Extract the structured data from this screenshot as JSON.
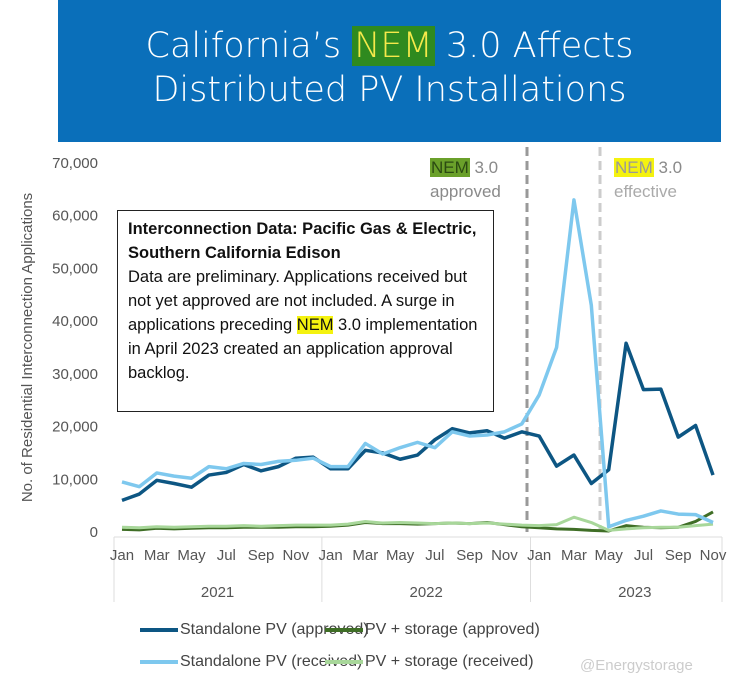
{
  "header": {
    "title_pre": "California’s ",
    "title_hl": "NEM",
    "title_post": " 3.0 Affects",
    "title_line2": "Distributed PV Installations"
  },
  "annotations": {
    "approved_hl": "NEM",
    "approved_ver": " 3.0",
    "approved_label": "approved",
    "effective_hl": "NEM",
    "effective_ver": " 3.0",
    "effective_label": "effective"
  },
  "note": {
    "title": "Interconnection Data: Pacific Gas & Electric, Southern California Edison",
    "body_pre": "Data are preliminary. Applications received but not yet approved are not included. A surge in applications preceding ",
    "body_hl": "NEM",
    "body_post": " 3.0 implementation in April 2023 created an application approval backlog."
  },
  "watermark": "@Energystorage",
  "chart_data": {
    "type": "line",
    "ylabel": "No. of Residential Interconnection Applications",
    "ylim": [
      0,
      70000
    ],
    "yticks": [
      "0",
      "10,000",
      "20,000",
      "30,000",
      "40,000",
      "50,000",
      "60,000",
      "70,000"
    ],
    "x_month_labels": [
      "Jan",
      "Mar",
      "May",
      "Jul",
      "Sep",
      "Nov"
    ],
    "years": [
      "2021",
      "2022",
      "2023"
    ],
    "months_count": 35,
    "series": [
      {
        "name": "Standalone PV (approved)",
        "color": "#0d5683",
        "values": [
          6000,
          7200,
          9800,
          9200,
          8500,
          10800,
          11300,
          12800,
          11600,
          12400,
          14000,
          14200,
          12000,
          12000,
          15500,
          15000,
          13800,
          14600,
          17500,
          19600,
          18800,
          19200,
          17800,
          19000,
          18200,
          12500,
          14600,
          9200,
          11800,
          35800,
          27000,
          27100,
          18000,
          20200,
          10800
        ]
      },
      {
        "name": "PV + storage (approved)",
        "color": "#3f6e26",
        "values": [
          500,
          400,
          700,
          600,
          700,
          800,
          800,
          900,
          900,
          900,
          1000,
          1000,
          1100,
          1300,
          1800,
          1600,
          1600,
          1500,
          1600,
          1700,
          1600,
          1800,
          1400,
          1000,
          800,
          600,
          500,
          300,
          200,
          1200,
          900,
          800,
          900,
          2000,
          3800
        ]
      },
      {
        "name": "Standalone PV (received)",
        "color": "#7ec8ee",
        "values": [
          9500,
          8600,
          11200,
          10600,
          10200,
          12400,
          12000,
          13000,
          12800,
          13400,
          13600,
          14000,
          12400,
          12400,
          16800,
          14800,
          16000,
          17000,
          16000,
          19000,
          18200,
          18400,
          19000,
          20500,
          26000,
          35000,
          63000,
          43000,
          1000,
          2200,
          3000,
          4000,
          3400,
          3300,
          1800
        ]
      },
      {
        "name": "PV + storage (received)",
        "color": "#a8d79a",
        "values": [
          900,
          800,
          1000,
          900,
          1000,
          1100,
          1100,
          1200,
          1100,
          1200,
          1300,
          1300,
          1300,
          1500,
          2000,
          1700,
          1800,
          1700,
          1600,
          1700,
          1600,
          1700,
          1500,
          1300,
          1200,
          1400,
          2800,
          1800,
          300,
          600,
          800,
          900,
          900,
          1200,
          1500
        ]
      }
    ],
    "events": [
      {
        "label": "NEM 3.0 approved",
        "month_index": 23.3
      },
      {
        "label": "NEM 3.0 effective",
        "month_index": 27.5
      }
    ]
  }
}
